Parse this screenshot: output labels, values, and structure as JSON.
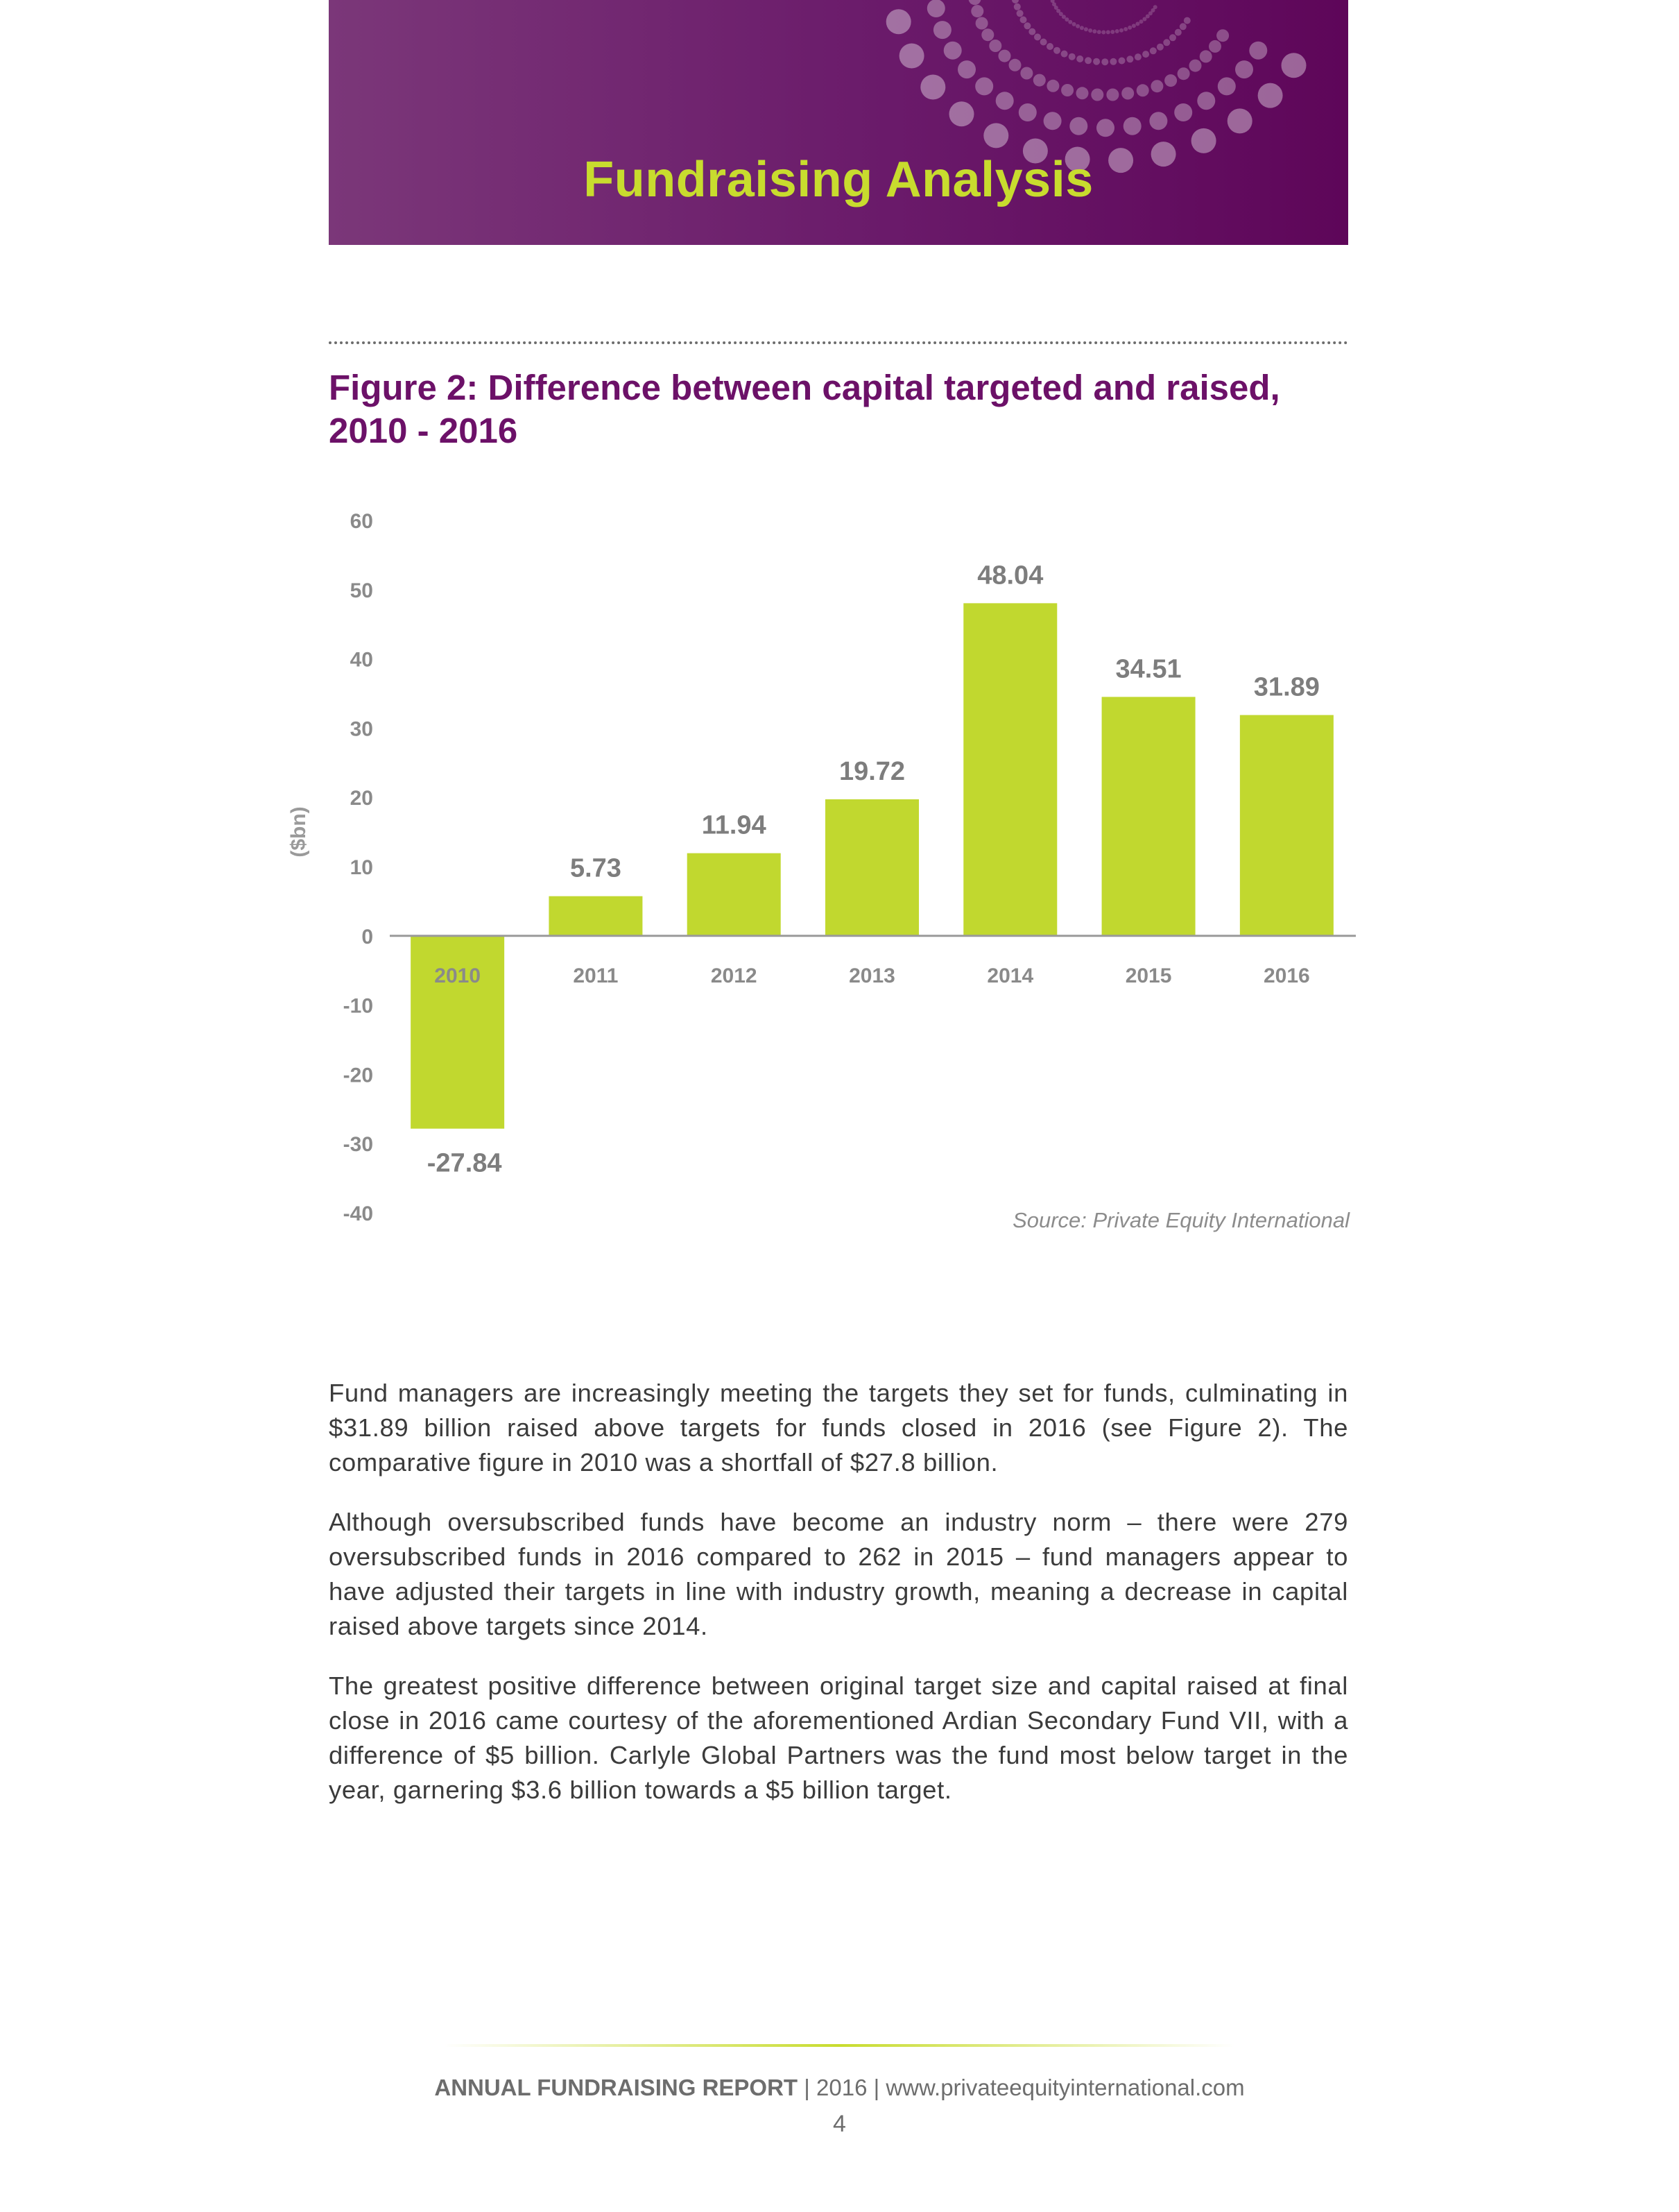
{
  "header": {
    "title": "Fundraising Analysis"
  },
  "figure": {
    "title_line1": "Figure 2: Difference between capital targeted and raised,",
    "title_line2": "2010 - 2016",
    "source": "Source: Private Equity International"
  },
  "chart_data": {
    "type": "bar",
    "categories": [
      "2010",
      "2011",
      "2012",
      "2013",
      "2014",
      "2015",
      "2016"
    ],
    "values": [
      -27.84,
      5.73,
      11.94,
      19.72,
      48.04,
      34.51,
      31.89
    ],
    "data_labels": [
      "-27.84",
      "5.73",
      "11.94",
      "19.72",
      "48.04",
      "34.51",
      "31.89"
    ],
    "ylabel": "($bn)",
    "ylim": [
      -40,
      60
    ],
    "yticks": [
      "60",
      "50",
      "40",
      "30",
      "20",
      "10",
      "0",
      "-10",
      "-20",
      "-30",
      "-40"
    ],
    "grid": false,
    "bar_color": "#c1d82f"
  },
  "body": {
    "paragraphs": [
      "Fund managers are increasingly meeting the targets they set for funds, culminating in $31.89 billion raised above targets for funds closed in 2016 (see Figure 2). The comparative figure in 2010 was a shortfall of $27.8 billion.",
      "Although oversubscribed funds have become an industry norm – there were 279 oversubscribed funds in 2016 compared to 262 in 2015 – fund managers appear to have adjusted their targets in line with industry growth, meaning a decrease in capital raised above targets since 2014.",
      "The greatest positive difference between original target size and capital raised at final close in 2016 came courtesy of the aforementioned Ardian Secondary Fund VII, with a difference of $5 billion. Carlyle Global Partners was the fund most below target in the year, garnering $3.6 billion towards a $5 billion target."
    ]
  },
  "footer": {
    "report": "ANNUAL FUNDRAISING REPORT",
    "year": "2016",
    "website": "www.privateequityinternational.com",
    "separator": "|",
    "page": "4"
  },
  "colors": {
    "banner_purple": "#6a1a6a",
    "title_green": "#c8dc2e",
    "figure_title_purple": "#6c1168",
    "bar_green": "#c1d82f"
  }
}
